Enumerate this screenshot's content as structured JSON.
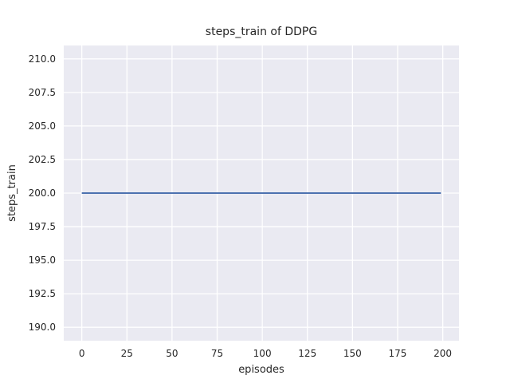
{
  "chart_data": {
    "type": "line",
    "title": "steps_train of DDPG",
    "xlabel": "episodes",
    "ylabel": "steps_train",
    "xlim": [
      -10,
      209
    ],
    "ylim": [
      189,
      211
    ],
    "x_ticks": [
      0,
      25,
      50,
      75,
      100,
      125,
      150,
      175,
      200
    ],
    "x_tick_labels": [
      "0",
      "25",
      "50",
      "75",
      "100",
      "125",
      "150",
      "175",
      "200"
    ],
    "y_ticks": [
      190.0,
      192.5,
      195.0,
      197.5,
      200.0,
      202.5,
      205.0,
      207.5,
      210.0
    ],
    "y_tick_labels": [
      "190.0",
      "192.5",
      "195.0",
      "197.5",
      "200.0",
      "202.5",
      "205.0",
      "207.5",
      "210.0"
    ],
    "grid": true,
    "legend": null,
    "colors": {
      "plot_background": "#eaeaf2",
      "grid": "#ffffff",
      "text": "#262626",
      "line": "#4c72b0",
      "figure_background": "#ffffff"
    },
    "series": [
      {
        "name": "steps_train",
        "color": "#4c72b0",
        "x": [
          0,
          199
        ],
        "y": [
          200,
          200
        ]
      }
    ]
  }
}
